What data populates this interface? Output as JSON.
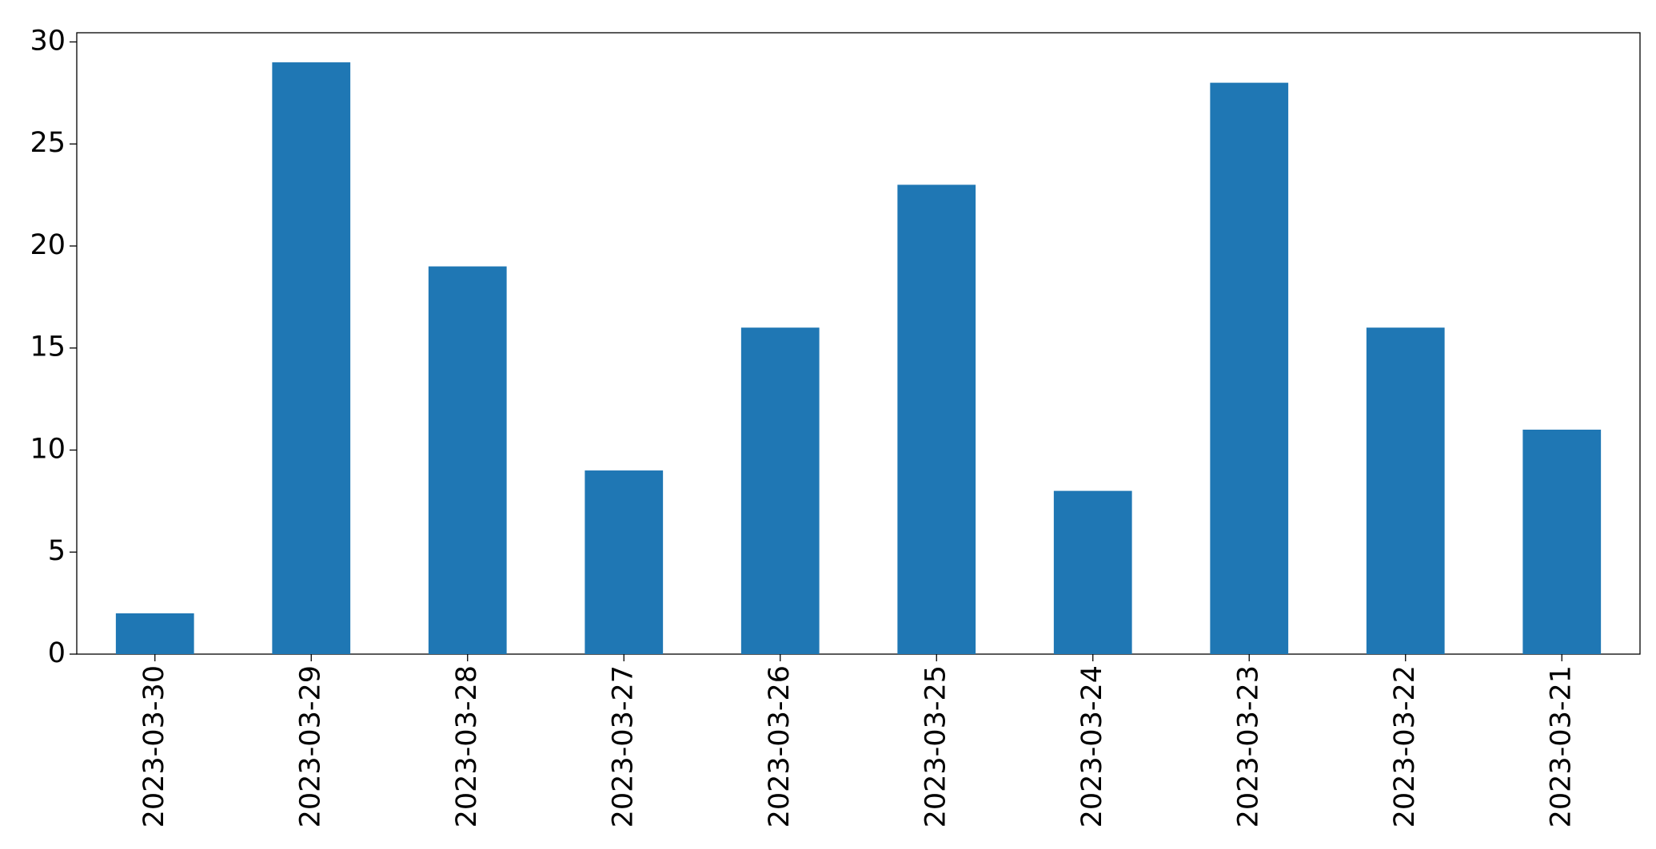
{
  "chart_data": {
    "type": "bar",
    "categories": [
      "2023-03-30",
      "2023-03-29",
      "2023-03-28",
      "2023-03-27",
      "2023-03-26",
      "2023-03-25",
      "2023-03-24",
      "2023-03-23",
      "2023-03-22",
      "2023-03-21"
    ],
    "values": [
      2,
      29,
      19,
      9,
      16,
      23,
      8,
      28,
      16,
      11
    ],
    "color": "#1f77b4",
    "ylim": [
      0,
      30.45
    ],
    "yticks": [
      0,
      5,
      10,
      15,
      20,
      25,
      30
    ],
    "grid": false
  }
}
